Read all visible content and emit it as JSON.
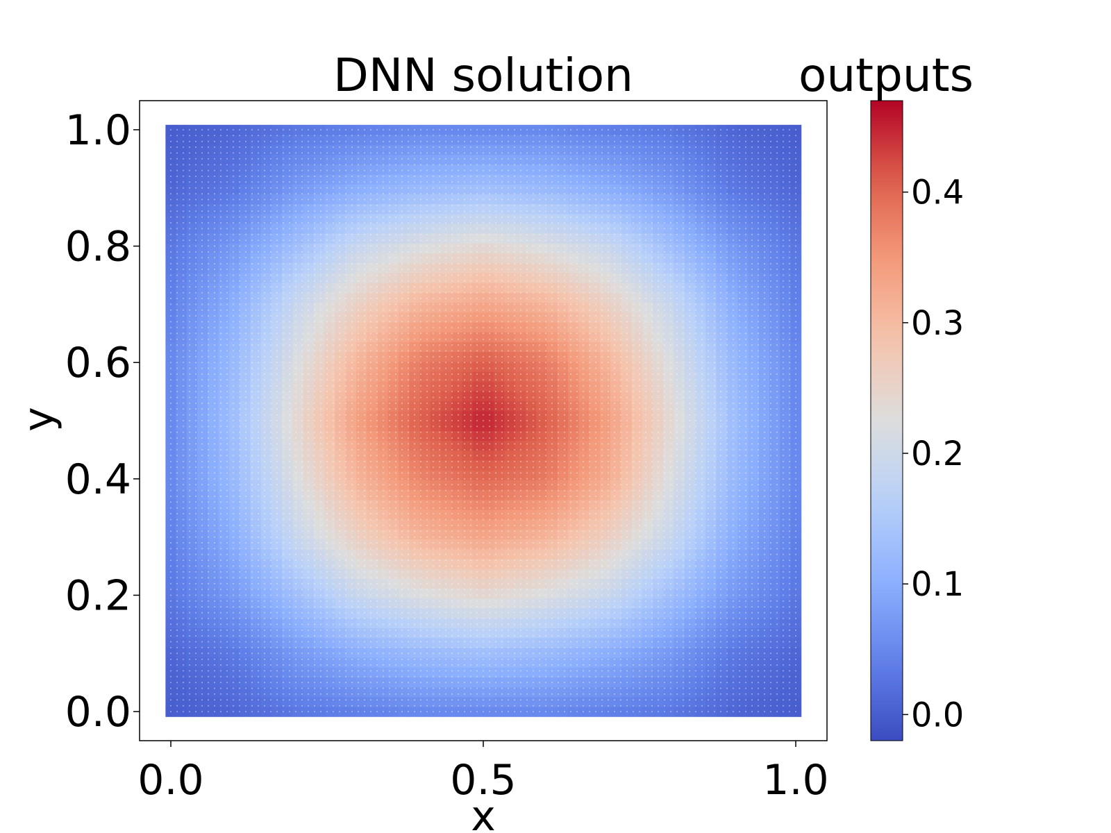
{
  "chart_data": {
    "type": "heatmap",
    "title": "DNN solution",
    "xlabel": "x",
    "ylabel": "y",
    "xlim": [
      -0.05,
      1.05
    ],
    "ylim": [
      -0.05,
      1.05
    ],
    "xticks": [
      0.0,
      0.5,
      1.0
    ],
    "xtick_labels": [
      "0.0",
      "0.5",
      "1.0"
    ],
    "yticks": [
      0.0,
      0.2,
      0.4,
      0.6,
      0.8,
      1.0
    ],
    "ytick_labels": [
      "0.0",
      "0.2",
      "0.4",
      "0.6",
      "0.8",
      "1.0"
    ],
    "grid": false,
    "colormap": "coolwarm",
    "colorbar": {
      "label": "outputs",
      "vmin": -0.02,
      "vmax": 0.47,
      "ticks": [
        0.0,
        0.1,
        0.2,
        0.3,
        0.4
      ],
      "tick_labels": [
        "0.0",
        "0.1",
        "0.2",
        "0.3",
        "0.4"
      ]
    },
    "grid_x": [
      0.0,
      0.1,
      0.2,
      0.3,
      0.4,
      0.5,
      0.6,
      0.7,
      0.8,
      0.9,
      1.0
    ],
    "grid_y": [
      0.0,
      0.1,
      0.2,
      0.3,
      0.4,
      0.5,
      0.6,
      0.7,
      0.8,
      0.9,
      1.0
    ],
    "z": [
      [
        0.0,
        0.01,
        0.03,
        0.04,
        0.05,
        0.05,
        0.05,
        0.04,
        0.03,
        0.01,
        0.0
      ],
      [
        0.01,
        0.03,
        0.07,
        0.1,
        0.12,
        0.13,
        0.12,
        0.1,
        0.07,
        0.03,
        0.01
      ],
      [
        0.03,
        0.07,
        0.13,
        0.19,
        0.22,
        0.24,
        0.22,
        0.19,
        0.13,
        0.07,
        0.03
      ],
      [
        0.04,
        0.1,
        0.19,
        0.26,
        0.31,
        0.33,
        0.31,
        0.26,
        0.19,
        0.1,
        0.04
      ],
      [
        0.05,
        0.12,
        0.22,
        0.31,
        0.37,
        0.4,
        0.38,
        0.32,
        0.22,
        0.12,
        0.05
      ],
      [
        0.05,
        0.13,
        0.24,
        0.34,
        0.41,
        0.45,
        0.41,
        0.34,
        0.24,
        0.13,
        0.05
      ],
      [
        0.05,
        0.12,
        0.22,
        0.31,
        0.38,
        0.41,
        0.38,
        0.31,
        0.22,
        0.12,
        0.05
      ],
      [
        0.04,
        0.1,
        0.19,
        0.26,
        0.31,
        0.33,
        0.31,
        0.26,
        0.19,
        0.1,
        0.04
      ],
      [
        0.03,
        0.07,
        0.13,
        0.19,
        0.22,
        0.24,
        0.22,
        0.19,
        0.13,
        0.07,
        0.03
      ],
      [
        0.01,
        0.03,
        0.07,
        0.1,
        0.12,
        0.13,
        0.12,
        0.1,
        0.07,
        0.03,
        0.01
      ],
      [
        0.0,
        0.01,
        0.03,
        0.04,
        0.05,
        0.05,
        0.05,
        0.04,
        0.03,
        0.01,
        0.0
      ]
    ]
  }
}
